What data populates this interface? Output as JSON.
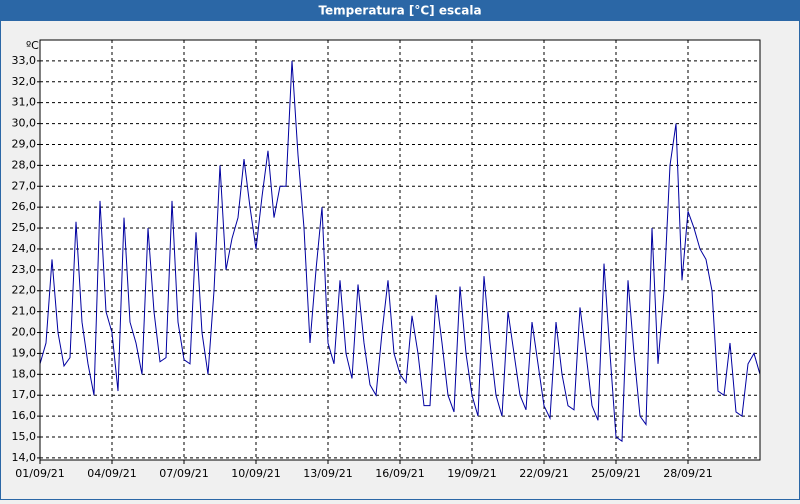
{
  "chart_data": {
    "type": "line",
    "title": "Temperatura [°C] escala",
    "y_label": "ºC",
    "x": [
      0,
      0.25,
      0.5,
      0.75,
      1,
      1.25,
      1.5,
      1.75,
      2,
      2.25,
      2.5,
      2.75,
      3,
      3.25,
      3.5,
      3.75,
      4,
      4.25,
      4.5,
      4.75,
      5,
      5.25,
      5.5,
      5.75,
      6,
      6.25,
      6.5,
      6.75,
      7,
      7.25,
      7.5,
      7.75,
      8,
      8.25,
      8.5,
      8.75,
      9,
      9.25,
      9.5,
      9.75,
      10,
      10.25,
      10.5,
      10.75,
      11,
      11.25,
      11.5,
      11.75,
      12,
      12.25,
      12.5,
      12.75,
      13,
      13.25,
      13.5,
      13.75,
      14,
      14.25,
      14.5,
      14.75,
      15,
      15.25,
      15.5,
      15.75,
      16,
      16.25,
      16.5,
      16.75,
      17,
      17.25,
      17.5,
      17.75,
      18,
      18.25,
      18.5,
      18.75,
      19,
      19.25,
      19.5,
      19.75,
      20,
      20.25,
      20.5,
      20.75,
      21,
      21.25,
      21.5,
      21.75,
      22,
      22.25,
      22.5,
      22.75,
      23,
      23.25,
      23.5,
      23.75,
      24,
      24.25,
      24.5,
      24.75,
      25,
      25.25,
      25.5,
      25.75,
      26,
      26.25,
      26.5,
      26.75,
      27,
      27.25,
      27.5,
      27.75,
      28,
      28.25,
      28.5,
      28.75,
      29,
      29.25,
      29.5,
      29.75,
      30
    ],
    "series": [
      {
        "name": "Temperatura",
        "color": "#0000a0",
        "values": [
          18.5,
          19.5,
          23.5,
          20.0,
          18.4,
          18.8,
          25.3,
          20.5,
          18.5,
          17.0,
          26.3,
          21.0,
          20.0,
          17.2,
          25.5,
          20.5,
          19.5,
          18.0,
          25.0,
          21.0,
          18.6,
          18.8,
          26.3,
          20.5,
          18.7,
          18.5,
          24.8,
          20.0,
          18.0,
          22.0,
          28.0,
          23.0,
          24.5,
          25.5,
          28.3,
          26.0,
          24.0,
          26.5,
          28.7,
          25.5,
          27.0,
          27.0,
          33.0,
          28.5,
          25.0,
          19.5,
          23.0,
          26.0,
          19.5,
          18.5,
          22.5,
          19.0,
          17.8,
          22.3,
          19.5,
          17.5,
          17.0,
          20.0,
          22.5,
          19.0,
          18.0,
          17.6,
          20.8,
          19.0,
          16.5,
          16.5,
          21.8,
          19.5,
          17.0,
          16.2,
          22.2,
          19.0,
          17.0,
          16.0,
          22.7,
          19.5,
          17.0,
          16.0,
          21.0,
          19.0,
          17.0,
          16.3,
          20.5,
          18.5,
          16.5,
          15.9,
          20.5,
          18.0,
          16.5,
          16.3,
          21.2,
          19.0,
          16.5,
          15.8,
          23.3,
          19.0,
          15.0,
          14.8,
          22.5,
          19.0,
          16.0,
          15.6,
          25.0,
          18.5,
          22.0,
          28.0,
          30.0,
          22.5,
          25.8,
          25.0,
          24.0,
          23.5,
          22.0,
          17.2,
          17.0,
          19.5,
          16.2,
          16.0,
          18.5,
          19.0,
          18.0
        ]
      }
    ],
    "xlim": [
      0,
      30
    ],
    "xticks": [
      {
        "value": 0,
        "label": "01/09/21"
      },
      {
        "value": 3,
        "label": "04/09/21"
      },
      {
        "value": 6,
        "label": "07/09/21"
      },
      {
        "value": 9,
        "label": "10/09/21"
      },
      {
        "value": 12,
        "label": "13/09/21"
      },
      {
        "value": 15,
        "label": "16/09/21"
      },
      {
        "value": 18,
        "label": "19/09/21"
      },
      {
        "value": 21,
        "label": "22/09/21"
      },
      {
        "value": 24,
        "label": "25/09/21"
      },
      {
        "value": 27,
        "label": "28/09/21"
      }
    ],
    "ylim": [
      13.9,
      34
    ],
    "yticks": [
      {
        "value": 14,
        "label": "14,0"
      },
      {
        "value": 15,
        "label": "15,0"
      },
      {
        "value": 16,
        "label": "16,0"
      },
      {
        "value": 17,
        "label": "17,0"
      },
      {
        "value": 18,
        "label": "18,0"
      },
      {
        "value": 19,
        "label": "19,0"
      },
      {
        "value": 20,
        "label": "20,0"
      },
      {
        "value": 21,
        "label": "21,0"
      },
      {
        "value": 22,
        "label": "22,0"
      },
      {
        "value": 23,
        "label": "23,0"
      },
      {
        "value": 24,
        "label": "24,0"
      },
      {
        "value": 25,
        "label": "25,0"
      },
      {
        "value": 26,
        "label": "26,0"
      },
      {
        "value": 27,
        "label": "27,0"
      },
      {
        "value": 28,
        "label": "28,0"
      },
      {
        "value": 29,
        "label": "29,0"
      },
      {
        "value": 30,
        "label": "30,0"
      },
      {
        "value": 31,
        "label": "31,0"
      },
      {
        "value": 32,
        "label": "32,0"
      },
      {
        "value": 33,
        "label": "33,0"
      }
    ],
    "grid": true
  }
}
